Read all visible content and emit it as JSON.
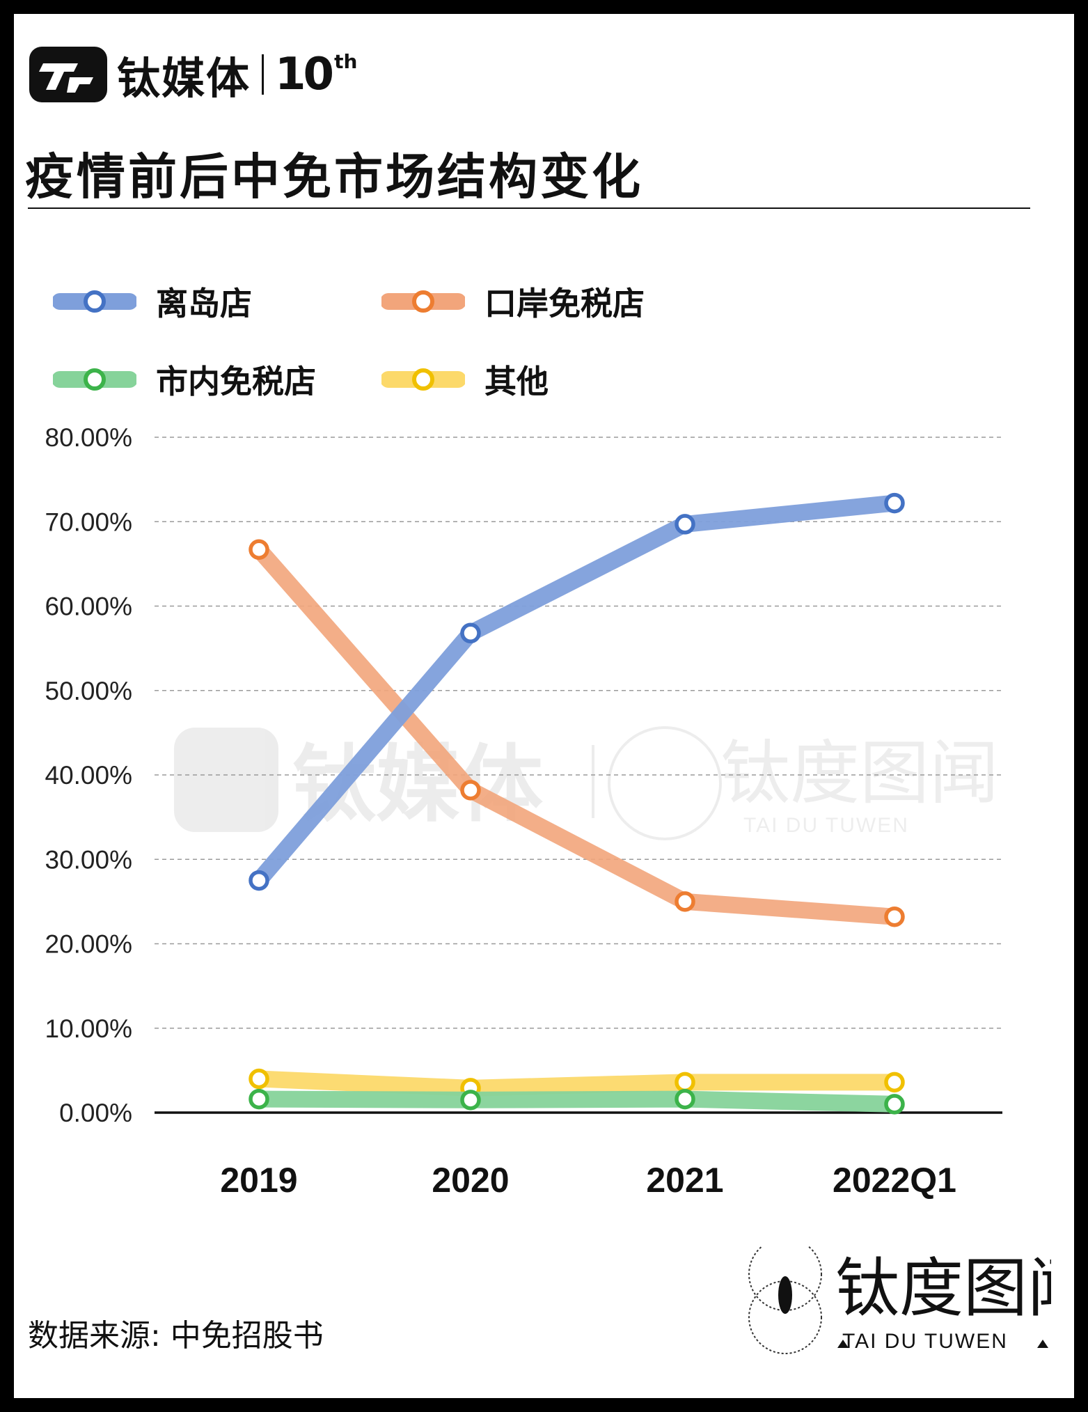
{
  "brand": {
    "name": "钛媒体",
    "ten": "10",
    "ten_sup": "th",
    "logo_icon": "tmt-logo-icon"
  },
  "title": "疫情前后中免市场结构变化",
  "legend": [
    {
      "name": "离岛店",
      "color": "#7e9fdb",
      "marker": "#4472c4"
    },
    {
      "name": "口岸免税店",
      "color": "#f2a57b",
      "marker": "#ed7d31"
    },
    {
      "name": "市内免税店",
      "color": "#86d39a",
      "marker": "#3cb34a"
    },
    {
      "name": "其他",
      "color": "#fcd96a",
      "marker": "#f0c000"
    }
  ],
  "source": "数据来源: 中免招股书",
  "watermark": {
    "brand": "钛媒体",
    "name": "钛度图闻",
    "sub": "TAI DU TUWEN"
  },
  "footer_logo": {
    "name": "钛度图闻",
    "sub": "TAI DU TUWEN",
    "icon": "eye-icon"
  },
  "chart_data": {
    "type": "line",
    "title": "疫情前后中免市场结构变化",
    "categories": [
      "2019",
      "2020",
      "2021",
      "2022Q1"
    ],
    "ylim": [
      0,
      0.8
    ],
    "yticks": [
      "0.00%",
      "10.00%",
      "20.00%",
      "30.00%",
      "40.00%",
      "50.00%",
      "60.00%",
      "70.00%",
      "80.00%"
    ],
    "grid": true,
    "legend_position": "top",
    "series": [
      {
        "name": "离岛店",
        "values": [
          0.275,
          0.568,
          0.697,
          0.722
        ],
        "color": "#7e9fdb",
        "marker": "#4472c4"
      },
      {
        "name": "口岸免税店",
        "values": [
          0.667,
          0.382,
          0.25,
          0.232
        ],
        "color": "#f2a57b",
        "marker": "#ed7d31"
      },
      {
        "name": "市内免税店",
        "values": [
          0.016,
          0.015,
          0.016,
          0.01
        ],
        "color": "#86d39a",
        "marker": "#3cb34a"
      },
      {
        "name": "其他",
        "values": [
          0.04,
          0.029,
          0.036,
          0.036
        ],
        "color": "#fcd96a",
        "marker": "#f0c000"
      }
    ]
  }
}
